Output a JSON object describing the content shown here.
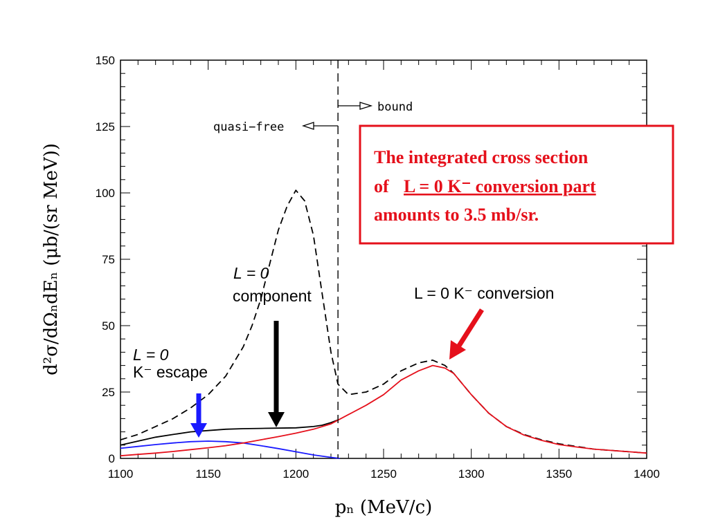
{
  "chart_data": {
    "type": "line",
    "xlabel": "pₙ  (MeV/c)",
    "ylabel": "d²σ/dΩₙdEₙ   (μb/(sr MeV))",
    "xlim": [
      1100,
      1400
    ],
    "ylim": [
      0,
      150
    ],
    "x_ticks": [
      "1100",
      "1150",
      "1200",
      "1250",
      "1300",
      "1350",
      "1400"
    ],
    "y_ticks": [
      "0",
      "25",
      "50",
      "75",
      "100",
      "125",
      "150"
    ],
    "threshold_x": 1224,
    "series": [
      {
        "style": "dashed",
        "color": "#000000",
        "x": [
          1100,
          1110,
          1120,
          1130,
          1140,
          1150,
          1160,
          1170,
          1175,
          1180,
          1185,
          1190,
          1195,
          1200,
          1205,
          1210,
          1215,
          1220,
          1224,
          1230,
          1240,
          1250,
          1260,
          1270,
          1278,
          1285,
          1290,
          1300,
          1310,
          1320,
          1330,
          1340,
          1350,
          1360,
          1370,
          1380,
          1390,
          1400
        ],
        "y": [
          7,
          9,
          12,
          15,
          19,
          24,
          31,
          42,
          50,
          60,
          73,
          86,
          95,
          101,
          97,
          84,
          62,
          40,
          28,
          24,
          25,
          28,
          33,
          36,
          37,
          35,
          32,
          24,
          17,
          12,
          9,
          7,
          5.5,
          4.5,
          3.5,
          3,
          2.5,
          2
        ]
      },
      {
        "style": "solid",
        "color": "#000000",
        "x": [
          1100,
          1110,
          1120,
          1130,
          1140,
          1150,
          1160,
          1170,
          1180,
          1190,
          1200,
          1210,
          1215,
          1220,
          1224
        ],
        "y": [
          5,
          6.5,
          8,
          9,
          10,
          10.5,
          11,
          11.2,
          11.3,
          11.4,
          11.5,
          12,
          12.5,
          13.5,
          14.5
        ]
      },
      {
        "style": "solid",
        "color": "#1a1aff",
        "x": [
          1100,
          1110,
          1120,
          1130,
          1140,
          1150,
          1160,
          1170,
          1180,
          1190,
          1200,
          1210,
          1220,
          1225
        ],
        "y": [
          3.8,
          4.5,
          5.2,
          5.8,
          6.3,
          6.5,
          6.3,
          5.8,
          4.8,
          3.7,
          2.5,
          1.3,
          0.4,
          0
        ]
      },
      {
        "style": "solid",
        "color": "#e5101b",
        "x": [
          1100,
          1110,
          1120,
          1130,
          1140,
          1150,
          1160,
          1170,
          1180,
          1190,
          1200,
          1210,
          1220,
          1230,
          1240,
          1250,
          1260,
          1270,
          1278,
          1285,
          1290,
          1300,
          1310,
          1320,
          1330,
          1340,
          1350,
          1360,
          1370,
          1380,
          1390,
          1400
        ],
        "y": [
          1,
          1.5,
          2,
          2.6,
          3.3,
          4,
          4.8,
          5.8,
          7,
          8.2,
          9.5,
          11,
          13,
          16.5,
          20,
          24,
          29.5,
          33,
          35,
          34,
          32,
          24,
          17,
          12,
          8.8,
          6.8,
          5.2,
          4.3,
          3.5,
          3,
          2.5,
          2
        ]
      }
    ],
    "annotations": {
      "quasi_free": "quasi−free",
      "bound": "bound",
      "l0_component_line1": "L = 0",
      "l0_component_line2": "component",
      "l0_escape_line1": "L = 0",
      "l0_escape_line2": "K⁻ escape",
      "conversion_label": "L = 0  K⁻ conversion"
    },
    "note_box": {
      "line1": "The integrated cross section",
      "line2_prefix": "of ",
      "line2_underlined": "L = 0  K⁻ conversion part",
      "line3": "amounts to  3.5 mb/sr."
    },
    "colors": {
      "red": "#e5101b",
      "blue": "#1a1aff",
      "black": "#000000"
    }
  }
}
